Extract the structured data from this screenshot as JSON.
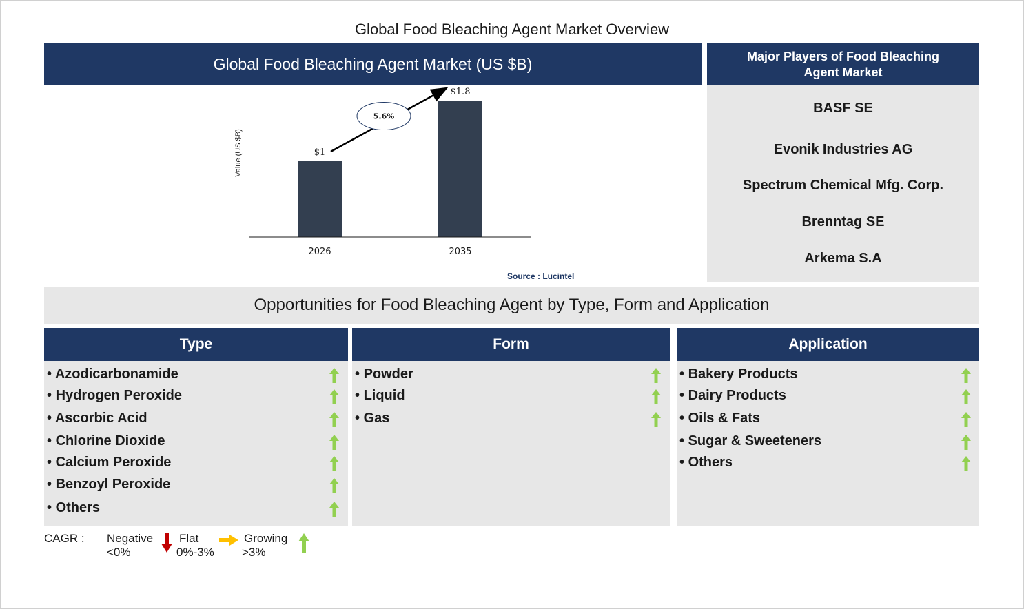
{
  "title": "Global Food Bleaching Agent Market Overview",
  "chart_header": "Global Food Bleaching Agent Market (US $B)",
  "chart_data": {
    "type": "bar",
    "categories": [
      "2026",
      "2035"
    ],
    "values": [
      1.0,
      1.8
    ],
    "value_labels": [
      "$1",
      "$1.8"
    ],
    "ylabel": "Value (US $B)",
    "ylim": [
      0,
      2.0
    ],
    "cagr_label": "5.6%",
    "bar_color": "#333f50",
    "grid": false
  },
  "source": "Source : Lucintel",
  "players": {
    "header": "Major Players of Food Bleaching Agent Market",
    "items": [
      "BASF SE",
      "Evonik Industries AG",
      "Spectrum Chemical Mfg. Corp.",
      "Brenntag SE",
      "Arkema S.A"
    ]
  },
  "opportunities": {
    "header": "Opportunities for Food Bleaching Agent by Type, Form and Application",
    "columns": [
      {
        "title": "Type",
        "items": [
          "Azodicarbonamide",
          "Hydrogen Peroxide",
          "Ascorbic Acid",
          "Chlorine Dioxide",
          "Calcium Peroxide",
          "Benzoyl Peroxide",
          "Others"
        ],
        "trend": [
          "growing",
          "growing",
          "growing",
          "growing",
          "growing",
          "growing",
          "growing"
        ]
      },
      {
        "title": "Form",
        "items": [
          "Powder",
          "Liquid",
          "Gas"
        ],
        "trend": [
          "growing",
          "growing",
          "growing"
        ]
      },
      {
        "title": "Application",
        "items": [
          "Bakery Products",
          "Dairy Products",
          "Oils & Fats",
          "Sugar & Sweeteners",
          "Others"
        ],
        "trend": [
          "growing",
          "growing",
          "growing",
          "growing",
          "growing"
        ]
      }
    ]
  },
  "legend": {
    "cagr": "CAGR :",
    "negative": "Negative",
    "negative_range": "<0%",
    "flat": "Flat",
    "flat_range": "0%-3%",
    "growing": "Growing",
    "growing_range": ">3%"
  },
  "colors": {
    "navy": "#1f3864",
    "panel_grey": "#e7e7e7",
    "bar": "#333f50",
    "growing": "#92d050",
    "flat": "#ffc000",
    "negative": "#c00000"
  }
}
